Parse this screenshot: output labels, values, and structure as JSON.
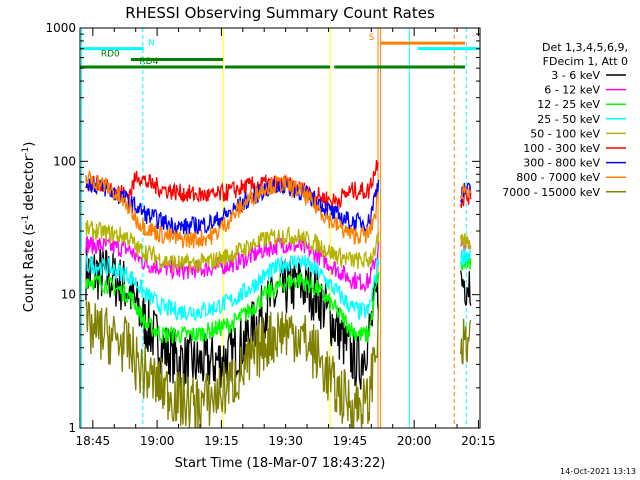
{
  "chart_data": {
    "type": "line",
    "title": "RHESSI Observing Summary Count Rates",
    "xlabel": "Start Time (18-Mar-07 18:43:22)",
    "ylabel": "Count Rate (s⁻¹ detector⁻¹)",
    "ylabel_main": "Count Rate (s",
    "ylabel_sup1": "-1",
    "ylabel_mid": " detector",
    "ylabel_sup2": "-1",
    "ylabel_end": ")",
    "yscale": "log",
    "ylim": [
      1,
      1000
    ],
    "xlim_minutes": [
      -1.37,
      92.0
    ],
    "x_unit": "minutes after 18:43:22",
    "x_ticks": [
      {
        "label": "18:45",
        "value": 1.63
      },
      {
        "label": "19:00",
        "value": 16.63
      },
      {
        "label": "19:15",
        "value": 31.63
      },
      {
        "label": "19:30",
        "value": 46.63
      },
      {
        "label": "19:45",
        "value": 61.63
      },
      {
        "label": "20:00",
        "value": 76.63
      },
      {
        "label": "20:15",
        "value": 91.63
      }
    ],
    "y_ticks": [
      {
        "label": "1",
        "value": 1
      },
      {
        "label": "10",
        "value": 10
      },
      {
        "label": "100",
        "value": 100
      },
      {
        "label": "1000",
        "value": 1000
      }
    ],
    "legend_position": "right",
    "legend_header": [
      "Det 1,3,4,5,6,9,",
      "FDecim 1, Att 0"
    ],
    "series": [
      {
        "name": "3 - 6 keV",
        "color": "#000000",
        "x": [
          0,
          5,
          10,
          12,
          14,
          18,
          22,
          26,
          30,
          34,
          38,
          42,
          46,
          50,
          54,
          58,
          62,
          64,
          66,
          67.5,
          68.5,
          70,
          71,
          72,
          73,
          84,
          86,
          87.5,
          88.5,
          90
        ],
        "y": [
          15,
          14,
          11,
          8,
          6,
          4,
          3.2,
          3,
          3.1,
          3.5,
          5,
          8,
          11,
          12,
          10,
          6,
          3.5,
          3,
          5,
          8,
          13,
          null,
          null,
          null,
          null,
          null,
          null,
          12,
          13,
          13
        ]
      },
      {
        "name": "6 - 12 keV",
        "color": "#ff00ff",
        "x": [
          0,
          5,
          10,
          12,
          14,
          18,
          22,
          26,
          30,
          34,
          38,
          42,
          46,
          50,
          54,
          58,
          62,
          64,
          66,
          67.5,
          68.5,
          70,
          71,
          72,
          73,
          84,
          86,
          87.5,
          88.5,
          90
        ],
        "y": [
          24,
          23,
          22,
          19,
          17,
          16,
          15,
          15.5,
          16,
          17,
          19,
          22,
          24,
          23,
          20,
          16,
          13,
          12.5,
          12.5,
          18,
          24,
          null,
          null,
          null,
          null,
          null,
          null,
          22,
          23,
          23
        ]
      },
      {
        "name": "12 - 25 keV",
        "color": "#00ff00",
        "x": [
          0,
          5,
          10,
          12,
          14,
          18,
          22,
          26,
          30,
          34,
          38,
          42,
          46,
          50,
          54,
          58,
          62,
          64,
          66,
          67.5,
          68.5,
          70,
          71,
          72,
          73,
          84,
          86,
          87.5,
          88.5,
          90
        ],
        "y": [
          13,
          12,
          10,
          8,
          6,
          5,
          5,
          5,
          5.5,
          6,
          7.5,
          10,
          12,
          13,
          11,
          8,
          5.5,
          5,
          5,
          10,
          16,
          null,
          null,
          null,
          null,
          null,
          null,
          16,
          17,
          17
        ]
      },
      {
        "name": "25 - 50 keV",
        "color": "#00ffff",
        "x": [
          0,
          5,
          10,
          12,
          14,
          18,
          22,
          26,
          30,
          34,
          38,
          42,
          46,
          50,
          54,
          58,
          62,
          64,
          66,
          67.5,
          68.5,
          70,
          71,
          72,
          73,
          84,
          86,
          87.5,
          88.5,
          90
        ],
        "y": [
          17,
          16,
          14,
          12,
          10,
          8,
          7.5,
          7.5,
          8,
          9,
          11,
          14,
          17,
          18,
          15,
          11,
          8,
          7.5,
          7.5,
          13,
          20,
          null,
          null,
          null,
          null,
          null,
          null,
          19,
          20,
          20
        ]
      },
      {
        "name": "50 - 100 keV",
        "color": "#b3b300",
        "x": [
          0,
          5,
          10,
          12,
          14,
          18,
          22,
          26,
          30,
          34,
          38,
          42,
          46,
          50,
          54,
          58,
          62,
          64,
          66,
          67.5,
          68.5,
          70,
          71,
          72,
          73,
          84,
          86,
          87.5,
          88.5,
          90
        ],
        "y": [
          31,
          29,
          27,
          22,
          21,
          18,
          17,
          17,
          18,
          20,
          23,
          26,
          28,
          27,
          24,
          20,
          18,
          18,
          18,
          22,
          27,
          null,
          null,
          null,
          null,
          null,
          null,
          24,
          25,
          25
        ]
      },
      {
        "name": "100 - 300 keV",
        "color": "#ff0000",
        "x": [
          0,
          5,
          10,
          12,
          14,
          18,
          22,
          26,
          30,
          34,
          38,
          42,
          46,
          50,
          54,
          58,
          62,
          64,
          66,
          67.5,
          68.5,
          70,
          71,
          72,
          73,
          84,
          86,
          87.5,
          88.5,
          90
        ],
        "y": [
          70,
          65,
          55,
          80,
          70,
          62,
          58,
          56,
          55,
          60,
          65,
          68,
          67,
          62,
          55,
          50,
          60,
          60,
          60,
          85,
          115,
          null,
          null,
          null,
          null,
          null,
          null,
          50,
          55,
          55
        ]
      },
      {
        "name": "300 - 800 keV",
        "color": "#0000ff",
        "x": [
          0,
          5,
          10,
          12,
          14,
          18,
          22,
          26,
          30,
          34,
          38,
          42,
          46,
          50,
          54,
          58,
          62,
          64,
          66,
          67.5,
          68.5,
          70,
          71,
          72,
          73,
          84,
          86,
          87.5,
          88.5,
          90
        ],
        "y": [
          70,
          62,
          50,
          45,
          40,
          35,
          32,
          33,
          35,
          42,
          52,
          62,
          66,
          60,
          50,
          40,
          35,
          35,
          35,
          55,
          75,
          null,
          null,
          null,
          null,
          null,
          null,
          57,
          60,
          60
        ]
      },
      {
        "name": "800 - 7000 keV",
        "color": "#ff8000",
        "x": [
          0,
          5,
          10,
          12,
          14,
          18,
          22,
          26,
          30,
          34,
          38,
          42,
          46,
          50,
          54,
          58,
          62,
          64,
          66,
          67.5,
          68.5,
          70,
          71,
          72,
          73,
          84,
          86,
          87.5,
          88.5,
          90
        ],
        "y": [
          75,
          65,
          45,
          36,
          32,
          28,
          26,
          26,
          28,
          38,
          52,
          65,
          68,
          60,
          45,
          34,
          28,
          28,
          28,
          40,
          60,
          null,
          null,
          null,
          null,
          null,
          null,
          60,
          62,
          62
        ]
      },
      {
        "name": "7000 - 15000 keV",
        "color": "#808000",
        "x": [
          0,
          5,
          10,
          12,
          14,
          18,
          22,
          26,
          30,
          34,
          38,
          42,
          46,
          50,
          54,
          58,
          62,
          64,
          66,
          67.5,
          68.5,
          70,
          71,
          72,
          73,
          84,
          86,
          87.5,
          88.5,
          90
        ],
        "y": [
          5.5,
          5,
          4,
          3,
          2.5,
          2,
          1.6,
          1.5,
          1.7,
          2.2,
          3,
          4.5,
          5.5,
          5,
          3.5,
          2,
          1.5,
          1.5,
          1.5,
          4,
          5.5,
          null,
          null,
          null,
          null,
          null,
          null,
          4,
          4.2,
          4.2
        ]
      }
    ],
    "flags": [
      {
        "label": "",
        "color": "#00ffff",
        "level": 700,
        "segments": [
          [
            -1.37,
            13.5
          ],
          [
            77.5,
            92.0
          ]
        ]
      },
      {
        "label": "N",
        "color": "#00ffff",
        "level": 700,
        "label_at": 14.5
      },
      {
        "label": "RD0",
        "color": "#008000",
        "level": 580,
        "segments": [
          [
            10.5,
            32.0
          ]
        ],
        "label_at": 3.5
      },
      {
        "label": "RD4",
        "color": "#008000",
        "level": 510,
        "segments": [
          [
            -1.37,
            32.0
          ],
          [
            32.5,
            57.0
          ],
          [
            58.0,
            88.5
          ]
        ],
        "label_at": 12.5
      },
      {
        "label": "S",
        "color": "#ff8000",
        "level": 770,
        "segments": [
          [
            68.8,
            88.5
          ]
        ],
        "label_at": 66.0
      }
    ],
    "vlines": [
      {
        "x": -1.0,
        "color": "#00ffff",
        "dash": false
      },
      {
        "x": 13.3,
        "color": "#00ffff",
        "dash": true
      },
      {
        "x": 32.0,
        "color": "#ffff00",
        "dash": false
      },
      {
        "x": 57.0,
        "color": "#ffff00",
        "dash": false
      },
      {
        "x": 68.2,
        "color": "#ff8000",
        "dash": false
      },
      {
        "x": 68.8,
        "color": "#ff8000",
        "dash": false
      },
      {
        "x": 75.5,
        "color": "#00ffff",
        "dash": false
      },
      {
        "x": 86.0,
        "color": "#ff8000",
        "dash": true
      },
      {
        "x": 88.8,
        "color": "#00ffff",
        "dash": true
      }
    ]
  },
  "footer_timestamp": "14-Oct-2021 13:13"
}
